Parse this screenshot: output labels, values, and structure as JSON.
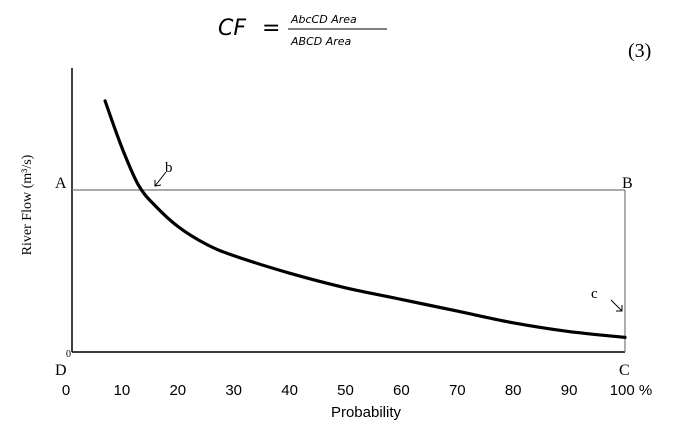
{
  "equation": {
    "lhs": "CF",
    "equals": "=",
    "numerator": "AbcCD Area",
    "denominator": "ABCD Area",
    "number": "(3)"
  },
  "chart_data": {
    "type": "line",
    "xlabel": "Probability",
    "ylabel": "River Flow (m³/s)",
    "x_ticks": [
      "0",
      "10",
      "20",
      "30",
      "40",
      "50",
      "60",
      "70",
      "80",
      "90",
      "100 %"
    ],
    "y_origin_label": "0",
    "xlim": [
      0,
      100
    ],
    "grid": false,
    "point_labels": {
      "A": "A",
      "B": "B",
      "C": "C",
      "D": "D",
      "b": "b",
      "c": "c"
    },
    "series": [
      {
        "x": [
          7,
          10,
          13,
          16,
          20,
          25,
          30,
          40,
          50,
          60,
          70,
          80,
          90,
          100
        ],
        "y": [
          0.86,
          0.7,
          0.57,
          0.5,
          0.43,
          0.37,
          0.33,
          0.27,
          0.22,
          0.18,
          0.14,
          0.1,
          0.07,
          0.05
        ]
      }
    ],
    "reference_level": 0.5
  }
}
